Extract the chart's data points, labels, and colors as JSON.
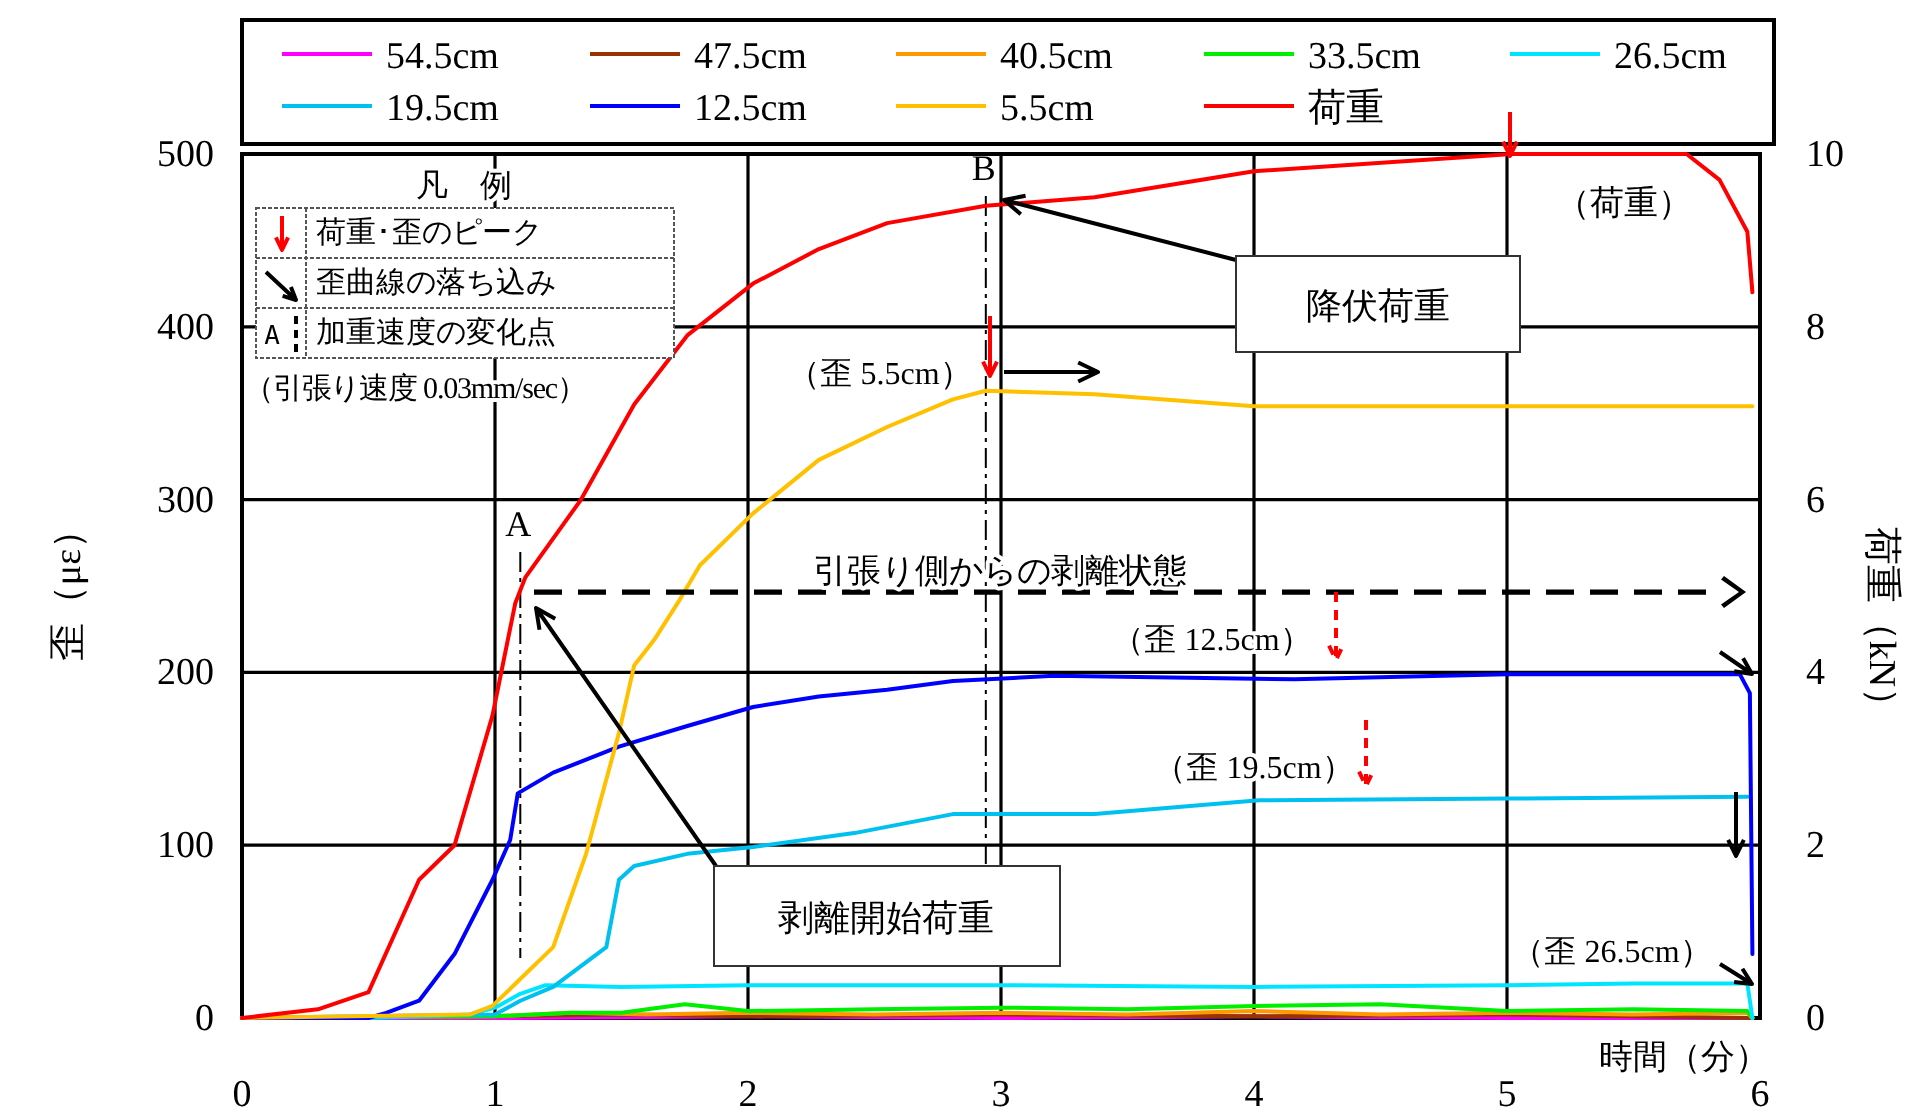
{
  "chart_data": {
    "type": "line",
    "xlabel": "時間（分）",
    "ylabel": "歪（με）",
    "y2label": "荷重（kN）",
    "xlim": [
      0,
      6
    ],
    "xticks": [
      0,
      1,
      2,
      3,
      4,
      5,
      6
    ],
    "ylim": [
      0,
      500
    ],
    "yticks": [
      0,
      100,
      200,
      300,
      400,
      500
    ],
    "y2lim": [
      0,
      10
    ],
    "y2ticks": [
      0,
      2,
      4,
      6,
      8,
      10
    ],
    "grid": true,
    "legend": "top",
    "line_style": "solid",
    "marker": "none",
    "series": [
      {
        "name": "54.5cm",
        "color": "#ff00ff",
        "x": [
          0,
          1,
          2,
          3,
          4,
          5,
          5.95,
          5.97
        ],
        "values": [
          0,
          0,
          1,
          0,
          1,
          0,
          0,
          0
        ]
      },
      {
        "name": "47.5cm",
        "color": "#993300",
        "x": [
          0,
          1,
          1.5,
          2,
          3,
          4,
          5,
          5.97
        ],
        "values": [
          0,
          1,
          2,
          1,
          2,
          1,
          2,
          0
        ]
      },
      {
        "name": "40.5cm",
        "color": "#ff9900",
        "x": [
          0,
          1,
          1.3,
          1.6,
          2,
          2.5,
          3,
          3.5,
          4,
          4.5,
          5,
          5.5,
          5.95,
          5.97
        ],
        "values": [
          0,
          1,
          3,
          2,
          3,
          2,
          3,
          2,
          4,
          2,
          3,
          2,
          3,
          0
        ]
      },
      {
        "name": "33.5cm",
        "color": "#00ee00",
        "x": [
          0,
          1,
          1.3,
          1.5,
          1.75,
          2,
          2.5,
          3,
          3.5,
          4,
          4.5,
          5,
          5.5,
          5.95,
          5.97
        ],
        "values": [
          0,
          1,
          3,
          3,
          8,
          4,
          5,
          6,
          5,
          7,
          8,
          4,
          5,
          4,
          0
        ]
      },
      {
        "name": "26.5cm",
        "color": "#00e5ff",
        "x": [
          0,
          0.5,
          0.9,
          1.0,
          1.1,
          1.2,
          1.5,
          2,
          3,
          4,
          5,
          5.5,
          5.95,
          5.97
        ],
        "values": [
          0,
          0,
          2,
          6,
          14,
          19,
          18,
          19,
          19,
          18,
          19,
          20,
          20,
          0
        ]
      },
      {
        "name": "19.5cm",
        "color": "#00c0f0",
        "x": [
          0,
          1,
          1.1,
          1.23,
          1.44,
          1.49,
          1.55,
          1.76,
          2.02,
          2.42,
          2.81,
          3.37,
          4.02,
          5,
          5.95
        ],
        "values": [
          0,
          2,
          10,
          18,
          41,
          80,
          88,
          95,
          99,
          107,
          118,
          118,
          126,
          127,
          128
        ]
      },
      {
        "name": "12.5cm",
        "color": "#0000ff",
        "x": [
          0,
          0.5,
          0.57,
          0.7,
          0.84,
          0.99,
          1.06,
          1.09,
          1.23,
          1.49,
          1.76,
          2.02,
          2.28,
          2.55,
          2.81,
          3.21,
          4.16,
          5,
          5.92,
          5.96,
          5.97
        ],
        "values": [
          0,
          0,
          3,
          10,
          37,
          80,
          103,
          130,
          142,
          157,
          169,
          180,
          186,
          190,
          195,
          198,
          196,
          199,
          199,
          188,
          37
        ]
      },
      {
        "name": "5.5cm",
        "color": "#ffc000",
        "x": [
          0,
          0.9,
          0.99,
          1.23,
          1.36,
          1.49,
          1.55,
          1.63,
          1.73,
          1.81,
          2.02,
          2.28,
          2.55,
          2.81,
          2.94,
          3.37,
          4,
          5,
          5.97
        ],
        "values": [
          0,
          2,
          7,
          41,
          95,
          165,
          204,
          219,
          242,
          262,
          292,
          323,
          342,
          358,
          363,
          361,
          354,
          354,
          354
        ]
      },
      {
        "name": "荷重",
        "color": "#ff0000",
        "axis": "y2",
        "x": [
          0,
          0.3,
          0.5,
          0.7,
          0.84,
          0.99,
          1.08,
          1.12,
          1.34,
          1.55,
          1.76,
          2.02,
          2.28,
          2.55,
          2.94,
          3.37,
          4,
          5.02,
          5.71,
          5.84,
          5.95,
          5.97
        ],
        "values": [
          0,
          0.1,
          0.3,
          1.6,
          2.0,
          3.5,
          4.8,
          5.1,
          6.0,
          7.1,
          7.9,
          8.5,
          8.9,
          9.2,
          9.4,
          9.5,
          9.8,
          10.0,
          10.0,
          9.7,
          9.1,
          8.4
        ]
      }
    ],
    "ref_lines": [
      {
        "axis": "x",
        "value": 1.1,
        "label": "A",
        "line_style": "dashdot"
      },
      {
        "axis": "x",
        "value": 2.94,
        "label": "B",
        "line_style": "dashdot"
      }
    ],
    "annotations": [
      "凡　例",
      "荷重･歪のピーク",
      "歪曲線の落ち込み",
      "加重速度の変化点",
      "（引張り速度 0.03mm/sec）",
      "（歪 5.5cm）",
      "（荷重）",
      "降伏荷重",
      "引張り側からの剥離状態",
      "（歪 12.5cm）",
      "（歪 19.5cm）",
      "（歪 26.5cm）",
      "剥離開始荷重",
      "A"
    ]
  }
}
